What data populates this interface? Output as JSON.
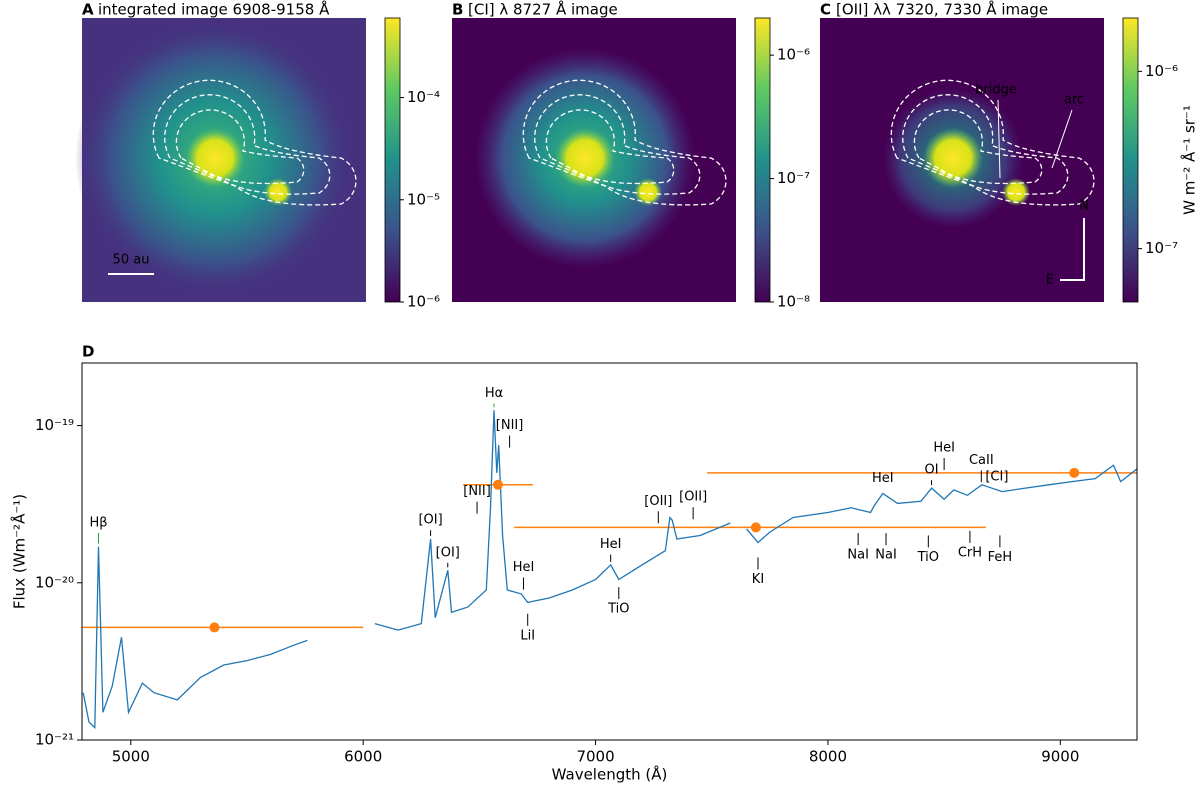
{
  "chart_data": [
    {
      "type": "image",
      "label": "A",
      "title": "integrated image 6908-9158 Å",
      "scale_label": "50 au",
      "colorbar": {
        "log": true,
        "lim": [
          1e-06,
          0.0006
        ],
        "ticks": [
          {
            "value": 1e-06,
            "label": "10⁻⁶"
          },
          {
            "value": 1e-05,
            "label": "10⁻⁵"
          },
          {
            "value": 0.0001,
            "label": "10⁻⁴"
          }
        ]
      }
    },
    {
      "type": "image",
      "label": "B",
      "title": "[CI] λ 8727 Å image",
      "colorbar": {
        "log": true,
        "lim": [
          1e-08,
          2e-06
        ],
        "ticks": [
          {
            "value": 1e-08,
            "label": "10⁻⁸"
          },
          {
            "value": 1e-07,
            "label": "10⁻⁷"
          },
          {
            "value": 1e-06,
            "label": "10⁻⁶"
          }
        ]
      }
    },
    {
      "type": "image",
      "label": "C",
      "title": "[OII] λλ 7320, 7330 Å image",
      "annotations": [
        "bridge",
        "arc",
        "N",
        "E"
      ],
      "colorbar": {
        "log": true,
        "lim": [
          5e-08,
          2e-06
        ],
        "label": "W m⁻² Å⁻¹ sr⁻¹",
        "ticks": [
          {
            "value": 1e-07,
            "label": "10⁻⁷"
          },
          {
            "value": 1e-06,
            "label": "10⁻⁶"
          }
        ]
      }
    },
    {
      "type": "line",
      "label": "D",
      "xlabel": "Wavelength (Å)",
      "ylabel": "Flux (Wm⁻²Å⁻¹)",
      "ylog": true,
      "xlim": [
        4790,
        9330
      ],
      "ylim": [
        1e-21,
        2.5e-19
      ],
      "xticks": [
        5000,
        6000,
        7000,
        8000,
        9000
      ],
      "yticks": [
        {
          "value": 1e-21,
          "label": "10⁻²¹"
        },
        {
          "value": 1e-20,
          "label": "10⁻²⁰"
        },
        {
          "value": 1e-19,
          "label": "10⁻¹⁹"
        }
      ],
      "series": [
        {
          "color": "#1f77b4",
          "x": [
            4795,
            4820,
            4845,
            4861,
            4880,
            4920,
            4960,
            4990,
            5050,
            5100,
            5200,
            5300,
            5400,
            5500,
            5600,
            5700,
            5760,
            5900,
            6050,
            6150,
            6250,
            6290,
            6310,
            6364,
            6380,
            6450,
            6530,
            6548,
            6563,
            6575,
            6583,
            6600,
            6620,
            6680,
            6708,
            6800,
            6900,
            7000,
            7065,
            7100,
            7200,
            7300,
            7320,
            7330,
            7350,
            7450,
            7550,
            7580,
            7620,
            7650,
            7699,
            7750,
            7850,
            8000,
            8100,
            8183,
            8200,
            8236,
            8300,
            8400,
            8446,
            8500,
            8542,
            8600,
            8662,
            8750,
            8850,
            8950,
            9050,
            9150,
            9229,
            9260,
            9330
          ],
          "values": [
            2e-21,
            1.3e-21,
            1.2e-21,
            1.7e-20,
            1.5e-21,
            2.2e-21,
            4.5e-21,
            1.5e-21,
            2.3e-21,
            2e-21,
            1.8e-21,
            2.5e-21,
            3e-21,
            3.2e-21,
            3.5e-21,
            4e-21,
            4.3e-21,
            null,
            5.5e-21,
            5e-21,
            5.5e-21,
            1.9e-20,
            6e-21,
            1.2e-20,
            6.5e-21,
            7e-21,
            9e-21,
            3e-20,
            1.25e-19,
            5e-20,
            7.5e-20,
            2e-20,
            9e-21,
            8.5e-21,
            7.5e-21,
            8e-21,
            9e-21,
            1.05e-20,
            1.3e-20,
            1.05e-20,
            1.3e-20,
            1.6e-20,
            2.6e-20,
            2.5e-20,
            1.9e-20,
            2e-20,
            2.3e-20,
            2.4e-20,
            null,
            2.2e-20,
            1.8e-20,
            2.1e-20,
            2.6e-20,
            2.8e-20,
            3e-20,
            2.8e-20,
            3.1e-20,
            3.7e-20,
            3.2e-20,
            3.3e-20,
            4e-20,
            3.4e-20,
            3.9e-20,
            3.6e-20,
            4.2e-20,
            3.8e-20,
            4e-20,
            4.2e-20,
            4.4e-20,
            4.6e-20,
            5.6e-20,
            4.4e-20,
            5.3e-20
          ]
        }
      ],
      "points": {
        "color": "#ff7f0e",
        "x": [
          5360,
          6580,
          7690,
          9060
        ],
        "values": [
          5.2e-21,
          4.2e-20,
          2.25e-20,
          5e-20
        ],
        "x_low": [
          4790,
          6430,
          6650,
          7480
        ],
        "x_high": [
          6000,
          6730,
          8680,
          9330
        ]
      },
      "annotations": [
        {
          "text": "Hβ",
          "x": 4861,
          "y": 2.4e-20,
          "color": "#2ca02c"
        },
        {
          "text": "Hα",
          "x": 6563,
          "y": 1.6e-19,
          "color": "#2ca02c"
        },
        {
          "text": "[OI]",
          "x": 6290,
          "y": 2.5e-20
        },
        {
          "text": "[OI]",
          "x": 6364,
          "y": 1.55e-20
        },
        {
          "text": "[NII]",
          "x": 6490,
          "y": 3.8e-20
        },
        {
          "text": "[NII]",
          "x": 6630,
          "y": 1e-19
        },
        {
          "text": "HeI",
          "x": 6690,
          "y": 1.25e-20
        },
        {
          "text": "LiI",
          "x": 6708,
          "y": 4.6e-21
        },
        {
          "text": "HeI",
          "x": 7065,
          "y": 1.75e-20
        },
        {
          "text": "TiO",
          "x": 7100,
          "y": 6.8e-21
        },
        {
          "text": "[OII]",
          "x": 7270,
          "y": 3.3e-20
        },
        {
          "text": "[OII]",
          "x": 7420,
          "y": 3.5e-20
        },
        {
          "text": "KI",
          "x": 7699,
          "y": 1.05e-20
        },
        {
          "text": "NaI",
          "x": 8130,
          "y": 1.5e-20
        },
        {
          "text": "NaI",
          "x": 8250,
          "y": 1.5e-20
        },
        {
          "text": "HeI",
          "x": 8236,
          "y": 4.6e-20
        },
        {
          "text": "TiO",
          "x": 8432,
          "y": 1.45e-20
        },
        {
          "text": "OI",
          "x": 8446,
          "y": 5.2e-20
        },
        {
          "text": "HeI",
          "x": 8500,
          "y": 7.2e-20
        },
        {
          "text": "CrH",
          "x": 8611,
          "y": 1.55e-20
        },
        {
          "text": "CaII",
          "x": 8660,
          "y": 6e-20
        },
        {
          "text": "[CI]",
          "x": 8727,
          "y": 4.7e-20
        },
        {
          "text": "FeH",
          "x": 8740,
          "y": 1.45e-20
        }
      ]
    }
  ]
}
